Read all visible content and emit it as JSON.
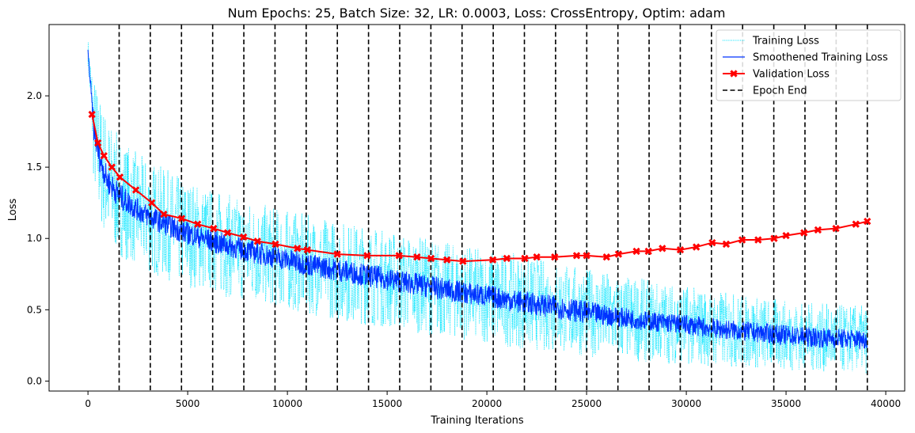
{
  "chart_data": {
    "type": "line",
    "title": "Num Epochs: 25, Batch Size: 32, LR: 0.0003, Loss: CrossEntropy, Optim: adam",
    "xlabel": "Training Iterations",
    "ylabel": "Loss",
    "xlim": [
      -1950,
      40950
    ],
    "ylim": [
      -0.07,
      2.5
    ],
    "x_ticks": [
      0,
      5000,
      10000,
      15000,
      20000,
      25000,
      30000,
      35000,
      40000
    ],
    "y_ticks": [
      0.0,
      0.5,
      1.0,
      1.5,
      2.0
    ],
    "x_tick_labels": [
      "0",
      "5000",
      "10000",
      "15000",
      "20000",
      "25000",
      "30000",
      "35000",
      "40000"
    ],
    "y_tick_labels": [
      "0.0",
      "0.5",
      "1.0",
      "1.5",
      "2.0"
    ],
    "legend_position": "top-right",
    "grid": false,
    "epoch_ends": [
      1563,
      3126,
      4689,
      6252,
      7815,
      9378,
      10941,
      12504,
      14067,
      15630,
      17193,
      18756,
      20319,
      21882,
      23445,
      25008,
      26571,
      28134,
      29697,
      31260,
      32823,
      34386,
      35949,
      37512,
      39075
    ],
    "series": [
      {
        "name": "Training Loss",
        "color": "#00e5ff",
        "style": "dotted",
        "x": [
          0,
          300,
          600,
          1000,
          1563,
          2500,
          3126,
          4689,
          6252,
          7815,
          9378,
          10941,
          12504,
          14067,
          15630,
          17193,
          18756,
          20319,
          21882,
          23445,
          25008,
          26571,
          28134,
          29697,
          31260,
          32823,
          34386,
          35949,
          37512,
          39075
        ],
        "y": [
          2.31,
          1.75,
          1.55,
          1.4,
          1.3,
          1.2,
          1.15,
          1.05,
          0.98,
          0.92,
          0.87,
          0.82,
          0.78,
          0.74,
          0.7,
          0.66,
          0.62,
          0.59,
          0.55,
          0.52,
          0.48,
          0.45,
          0.42,
          0.4,
          0.37,
          0.35,
          0.33,
          0.31,
          0.3,
          0.29
        ],
        "spread": [
          0.1,
          0.4,
          0.45,
          0.45,
          0.42,
          0.4,
          0.4,
          0.38,
          0.37,
          0.36,
          0.35,
          0.35,
          0.35,
          0.35,
          0.34,
          0.34,
          0.33,
          0.33,
          0.33,
          0.32,
          0.31,
          0.3,
          0.29,
          0.28,
          0.27,
          0.26,
          0.25,
          0.24,
          0.24,
          0.24
        ]
      },
      {
        "name": "Smoothened Training Loss",
        "color": "#0033ff",
        "style": "solid",
        "x": [
          0,
          300,
          600,
          1000,
          1563,
          2500,
          3126,
          4689,
          6252,
          7815,
          9378,
          10941,
          12504,
          14067,
          15630,
          17193,
          18756,
          20319,
          21882,
          23445,
          25008,
          26571,
          28134,
          29697,
          31260,
          32823,
          34386,
          35949,
          37512,
          39075
        ],
        "y": [
          2.31,
          1.75,
          1.55,
          1.4,
          1.3,
          1.2,
          1.15,
          1.05,
          0.98,
          0.92,
          0.87,
          0.82,
          0.78,
          0.74,
          0.7,
          0.66,
          0.62,
          0.59,
          0.55,
          0.52,
          0.48,
          0.45,
          0.42,
          0.4,
          0.37,
          0.35,
          0.33,
          0.31,
          0.3,
          0.29
        ],
        "spread": [
          0.02,
          0.08,
          0.09,
          0.09,
          0.09,
          0.08,
          0.08,
          0.08,
          0.08,
          0.08,
          0.08,
          0.08,
          0.08,
          0.08,
          0.08,
          0.08,
          0.08,
          0.08,
          0.08,
          0.08,
          0.08,
          0.07,
          0.07,
          0.07,
          0.07,
          0.07,
          0.07,
          0.07,
          0.07,
          0.07
        ]
      },
      {
        "name": "Validation Loss",
        "color": "#ff0000",
        "style": "solid-marker-x",
        "x": [
          200,
          500,
          800,
          1200,
          1600,
          2400,
          3200,
          3800,
          4700,
          5500,
          6300,
          7000,
          7800,
          8500,
          9400,
          10500,
          11000,
          12500,
          14000,
          15600,
          16500,
          17200,
          18000,
          18800,
          20300,
          21000,
          21900,
          22500,
          23400,
          24500,
          25000,
          26000,
          26600,
          27500,
          28100,
          28800,
          29700,
          30500,
          31300,
          32000,
          32800,
          33600,
          34400,
          35000,
          35900,
          36600,
          37500,
          38500,
          39075
        ],
        "y": [
          1.87,
          1.67,
          1.58,
          1.5,
          1.43,
          1.34,
          1.25,
          1.17,
          1.14,
          1.1,
          1.07,
          1.04,
          1.01,
          0.98,
          0.96,
          0.93,
          0.92,
          0.89,
          0.88,
          0.88,
          0.87,
          0.86,
          0.85,
          0.84,
          0.85,
          0.86,
          0.86,
          0.87,
          0.87,
          0.88,
          0.88,
          0.87,
          0.89,
          0.91,
          0.91,
          0.93,
          0.92,
          0.94,
          0.97,
          0.96,
          0.99,
          0.99,
          1.0,
          1.02,
          1.04,
          1.06,
          1.07,
          1.1,
          1.12
        ]
      },
      {
        "name": "Epoch End",
        "color": "#000000",
        "style": "dashed"
      }
    ]
  }
}
